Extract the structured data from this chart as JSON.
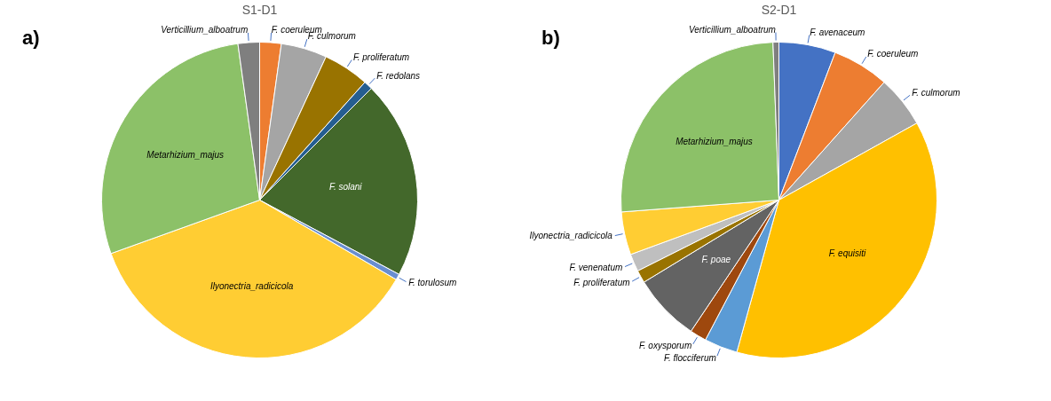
{
  "chart_data": [
    {
      "type": "pie",
      "title": "S1-D1",
      "annotations": [
        "a)"
      ],
      "categories": [
        "F. coeruleum",
        "F. culmorum",
        "F. proliferatum",
        "F. redolans",
        "F. solani",
        "F. torulosum",
        "Ilyonectria_radicicola",
        "Metarhizium_majus",
        "Verticillium_alboatrum"
      ],
      "values": [
        2.2,
        4.7,
        4.7,
        0.9,
        20.3,
        0.6,
        36.1,
        28.3,
        2.2
      ],
      "colors": [
        "#ed7d31",
        "#a5a5a5",
        "#997300",
        "#255e91",
        "#43682b",
        "#698ed0",
        "#ffcd33",
        "#8cc168",
        "#7f7f7f"
      ]
    },
    {
      "type": "pie",
      "title": "S2-D1",
      "annotations": [
        "b)"
      ],
      "categories": [
        "F. avenaceum",
        "F. coeruleum",
        "F. culmorum",
        "F. equisiti",
        "F. flocciferum",
        "F. oxysporum",
        "F. poae",
        "F. proliferatum",
        "F. venenatum",
        "Ilyonectria_radicicola",
        "Metarhizium_majus",
        "Verticillium_alboatrum"
      ],
      "values": [
        5.8,
        5.8,
        5.3,
        37.4,
        3.4,
        1.7,
        6.9,
        1.3,
        1.8,
        4.4,
        25.6,
        0.6
      ],
      "colors": [
        "#4472c4",
        "#ed7d31",
        "#a5a5a5",
        "#ffc000",
        "#5b9bd5",
        "#9e480e",
        "#636363",
        "#997300",
        "#bfbfbf",
        "#ffcd33",
        "#8cc168",
        "#7f7f7f"
      ]
    }
  ]
}
